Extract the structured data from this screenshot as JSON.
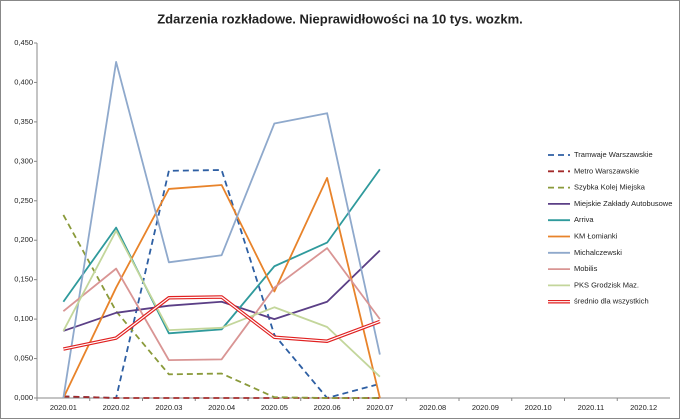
{
  "chart_data": {
    "type": "line",
    "title": "Zdarzenia rozkładowe. Nieprawidłowości na 10 tys. wozkm.",
    "categories": [
      "2020.01",
      "2020.02",
      "2020.03",
      "2020.04",
      "2020.05",
      "2020.06",
      "2020.07",
      "2020.08",
      "2020.09",
      "2020.10",
      "2020.11",
      "2020.12"
    ],
    "ylim": [
      0,
      0.45
    ],
    "yticks": [
      {
        "value": 0,
        "label": "0,000"
      },
      {
        "value": 0.05,
        "label": "0,050"
      },
      {
        "value": 0.1,
        "label": "0,100"
      },
      {
        "value": 0.15,
        "label": "0,150"
      },
      {
        "value": 0.2,
        "label": "0,200"
      },
      {
        "value": 0.25,
        "label": "0,250"
      },
      {
        "value": 0.3,
        "label": "0,300"
      },
      {
        "value": 0.35,
        "label": "0,350"
      },
      {
        "value": 0.4,
        "label": "0,400"
      },
      {
        "value": 0.45,
        "label": "0,450"
      }
    ],
    "grid": false,
    "legend": "right",
    "series": [
      {
        "name": "Tramwaje Warszawskie",
        "color": "#2e5fa3",
        "style": "dashed",
        "values": [
          0.002,
          0,
          0.288,
          0.289,
          0.08,
          0,
          0.018,
          null,
          null,
          null,
          null,
          null
        ]
      },
      {
        "name": "Metro Warszawskie",
        "color": "#a32a2a",
        "style": "dashed",
        "values": [
          0.002,
          0,
          0,
          0,
          0,
          0,
          0,
          null,
          null,
          null,
          null,
          null
        ]
      },
      {
        "name": "Szybka Kolej Miejska",
        "color": "#8a9a3a",
        "style": "dashed",
        "values": [
          0.232,
          0.11,
          0.03,
          0.031,
          0.001,
          0,
          0,
          null,
          null,
          null,
          null,
          null
        ]
      },
      {
        "name": "Miejskie Zakłady Autobusowe",
        "color": "#5b3f86",
        "style": "solid",
        "values": [
          0.085,
          0.108,
          0.117,
          0.122,
          0.1,
          0.122,
          0.187,
          null,
          null,
          null,
          null,
          null
        ]
      },
      {
        "name": "Arriva",
        "color": "#2f9a9c",
        "style": "solid",
        "values": [
          0.122,
          0.216,
          0.082,
          0.087,
          0.167,
          0.197,
          0.29,
          null,
          null,
          null,
          null,
          null
        ]
      },
      {
        "name": "KM Łomianki",
        "color": "#e8832a",
        "style": "solid",
        "values": [
          0,
          0.14,
          0.265,
          0.27,
          0.135,
          0.279,
          0,
          null,
          null,
          null,
          null,
          null
        ]
      },
      {
        "name": "Michalczewski",
        "color": "#8fa9cc",
        "style": "solid",
        "values": [
          0,
          0.426,
          0.172,
          0.181,
          0.348,
          0.361,
          0.055,
          null,
          null,
          null,
          null,
          null
        ]
      },
      {
        "name": "Mobilis",
        "color": "#d99594",
        "style": "solid",
        "values": [
          0.11,
          0.164,
          0.048,
          0.049,
          0.14,
          0.19,
          0.1,
          null,
          null,
          null,
          null,
          null
        ]
      },
      {
        "name": "PKS Grodzisk Maz.",
        "color": "#c3d69b",
        "style": "solid",
        "values": [
          0.085,
          0.212,
          0.086,
          0.089,
          0.115,
          0.09,
          0.027,
          null,
          null,
          null,
          null,
          null
        ]
      },
      {
        "name": "średnio dla wszystkich",
        "color": "#e02020",
        "style": "double",
        "values": [
          0.062,
          0.076,
          0.127,
          0.128,
          0.077,
          0.072,
          0.097,
          null,
          null,
          null,
          null,
          null
        ]
      }
    ]
  }
}
